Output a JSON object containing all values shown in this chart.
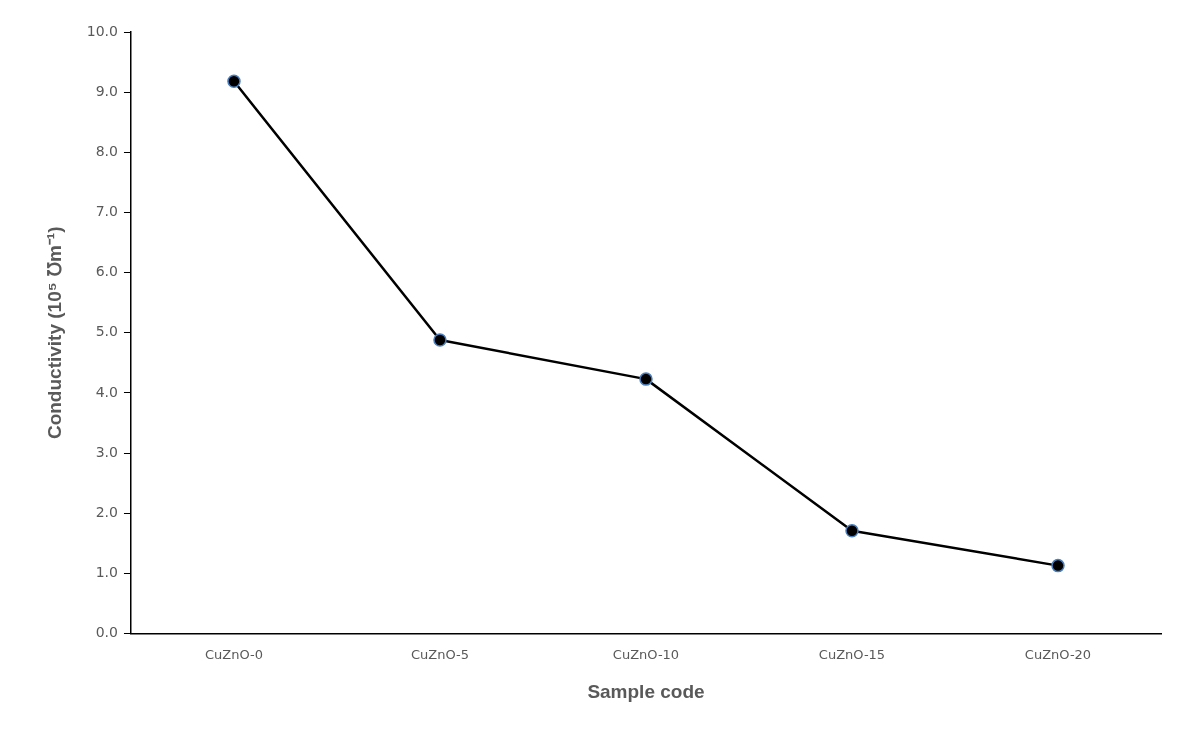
{
  "chart_data": {
    "type": "line",
    "xlabel": "Sample code",
    "ylabel": "Conductivity (10⁵ ℧m⁻¹)",
    "categories": [
      "CuZnO-0",
      "CuZnO-5",
      "CuZnO-10",
      "CuZnO-15",
      "CuZnO-20"
    ],
    "series": [
      {
        "color": "#000000",
        "values": [
          9.18,
          4.88,
          4.23,
          1.71,
          1.13
        ]
      }
    ],
    "ylim": [
      0,
      10
    ],
    "yticks": [
      {
        "value": 0,
        "label": "0.0"
      },
      {
        "value": 1,
        "label": "1.0"
      },
      {
        "value": 2,
        "label": "2.0"
      },
      {
        "value": 3,
        "label": "3.0"
      },
      {
        "value": 4,
        "label": "4.0"
      },
      {
        "value": 5,
        "label": "5.0"
      },
      {
        "value": 6,
        "label": "6.0"
      },
      {
        "value": 7,
        "label": "7.0"
      },
      {
        "value": 8,
        "label": "8.0"
      },
      {
        "value": 9,
        "label": "9.0"
      },
      {
        "value": 10,
        "label": "10.0"
      }
    ],
    "grid": false,
    "legend": false,
    "marker": "circle",
    "line_style": "solid"
  }
}
